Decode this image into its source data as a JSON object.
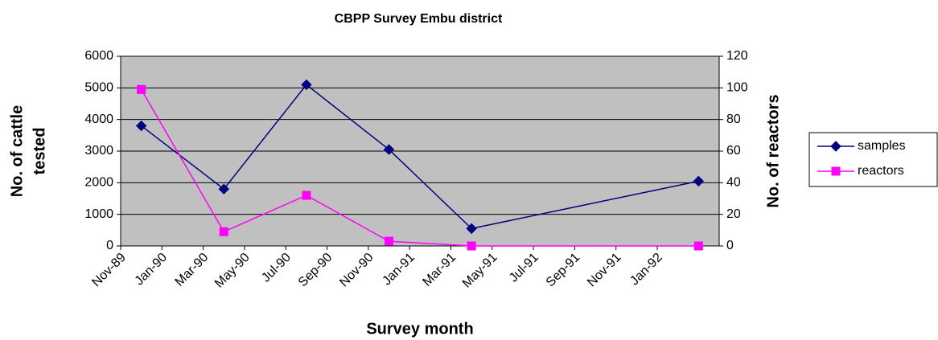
{
  "chart_data": {
    "type": "line",
    "title": "CBPP Survey Embu district",
    "xlabel": "Survey month",
    "ylabel": [
      "No. of cattle",
      "tested"
    ],
    "y2label": "No. of reactors",
    "x": [
      "1989-12",
      "1990-04",
      "1990-08",
      "1990-12",
      "1991-04",
      "1992-03"
    ],
    "series": [
      {
        "name": "samples",
        "color": "#000080",
        "marker": "diamond",
        "values": [
          3800,
          1800,
          5100,
          3050,
          550,
          2050
        ]
      },
      {
        "name": "reactors",
        "color": "#ff00ff",
        "marker": "square",
        "axis": "y2",
        "values": [
          99,
          9,
          32,
          3,
          0,
          0
        ]
      }
    ],
    "xlim": [
      "1989-11",
      "1992-04"
    ],
    "xticks": [
      {
        "value": "1989-11",
        "label": "Nov-89"
      },
      {
        "value": "1990-01",
        "label": "Jan-90"
      },
      {
        "value": "1990-03",
        "label": "Mar-90"
      },
      {
        "value": "1990-05",
        "label": "May-90"
      },
      {
        "value": "1990-07",
        "label": "Jul-90"
      },
      {
        "value": "1990-09",
        "label": "Sep-90"
      },
      {
        "value": "1990-11",
        "label": "Nov-90"
      },
      {
        "value": "1991-01",
        "label": "Jan-91"
      },
      {
        "value": "1991-03",
        "label": "Mar-91"
      },
      {
        "value": "1991-05",
        "label": "May-91"
      },
      {
        "value": "1991-07",
        "label": "Jul-91"
      },
      {
        "value": "1991-09",
        "label": "Sep-91"
      },
      {
        "value": "1991-11",
        "label": "Nov-91"
      },
      {
        "value": "1992-01",
        "label": "Jan-92"
      }
    ],
    "ylim": [
      0,
      6000
    ],
    "yticks": [
      0,
      1000,
      2000,
      3000,
      4000,
      5000,
      6000
    ],
    "y2lim": [
      0,
      120
    ],
    "y2ticks": [
      0,
      20,
      40,
      60,
      80,
      100,
      120
    ],
    "grid": true,
    "legend": "right",
    "plot_background": "#c0c0c0"
  }
}
